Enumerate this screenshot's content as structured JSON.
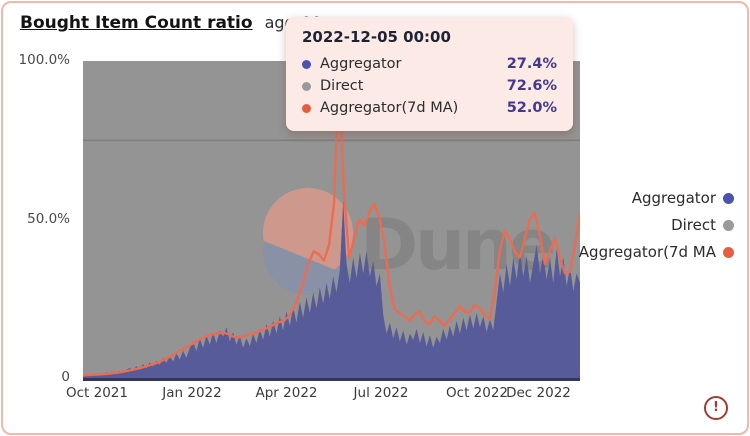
{
  "card": {
    "title": "Bought Item Count ratio",
    "subtitle": "aggr00"
  },
  "tooltip": {
    "date": "2022-12-05 00:00",
    "rows": [
      {
        "label": "Aggregator",
        "value": "27.4%",
        "color": "#4c52b0"
      },
      {
        "label": "Direct",
        "value": "72.6%",
        "color": "#9a9a9a"
      },
      {
        "label": "Aggregator(7d MA)",
        "value": "52.0%",
        "color": "#e95c3f"
      }
    ]
  },
  "legend": [
    {
      "label": "Aggregator",
      "color": "#4c52b0"
    },
    {
      "label": "Direct",
      "color": "#9a9a9a"
    },
    {
      "label": "Aggregator(7d MA",
      "color": "#e95c3f"
    }
  ],
  "watermark": {
    "text": "Dune",
    "circle_top_color": "#cf988c",
    "circle_bottom_color": "#8891a6",
    "text_color": "#858585"
  },
  "warning": {
    "glyph": "!"
  },
  "chart_data": {
    "type": "area",
    "title": "Bought Item Count ratio",
    "stacked_to": 100,
    "ylim": [
      0,
      100
    ],
    "grid_line_percent": 75,
    "plot_bg_color": "#949494",
    "y_ticks": [
      {
        "label": "100.0%",
        "v": 100
      },
      {
        "label": "50.0%",
        "v": 50
      },
      {
        "label": "0",
        "v": 0
      }
    ],
    "x_ticks": [
      {
        "label": "Oct 2021",
        "t": 2.82
      },
      {
        "label": "Jan 2022",
        "t": 21.93
      },
      {
        "label": "Apr 2022",
        "t": 40.95
      },
      {
        "label": "Jul 2022",
        "t": 59.96
      },
      {
        "label": "Oct 2022",
        "t": 79.28
      },
      {
        "label": "Dec 2022",
        "t": 91.65
      }
    ],
    "series": [
      {
        "name": "Aggregator",
        "type": "area",
        "color": "#585b99",
        "values": [
          0.8,
          1.2,
          0.7,
          1.3,
          0.9,
          1.5,
          0.9,
          1.8,
          1.1,
          2.0,
          1.4,
          2.3,
          1.6,
          2.6,
          3.2,
          2.1,
          3.8,
          2.6,
          4.4,
          3.0,
          5.0,
          3.6,
          5.4,
          4.2,
          6.3,
          4.8,
          7.0,
          5.2,
          7.8,
          5.8,
          8.6,
          6.4,
          9.4,
          11.5,
          8.5,
          12.5,
          9.5,
          13.5,
          10.5,
          14.5,
          11.0,
          15.0,
          13.0,
          16.0,
          11.5,
          14.5,
          10.5,
          13.5,
          9.5,
          12.5,
          10.0,
          14.0,
          11.0,
          15.5,
          12.0,
          17.0,
          13.0,
          18.0,
          14.0,
          19.5,
          15.0,
          21.0,
          16.5,
          22.5,
          17.5,
          24.0,
          19.0,
          25.5,
          20.5,
          27.0,
          22.0,
          28.5,
          23.5,
          30.0,
          25.0,
          32.0,
          27.0,
          34.0,
          56.0,
          36.0,
          30.0,
          38.0,
          31.5,
          39.5,
          33.0,
          40.0,
          32.0,
          37.0,
          29.0,
          33.0,
          20.0,
          14.0,
          17.5,
          12.5,
          16.0,
          11.5,
          15.0,
          10.5,
          14.0,
          12.0,
          15.5,
          11.0,
          14.5,
          10.0,
          13.5,
          9.5,
          13.0,
          11.0,
          15.5,
          12.0,
          16.5,
          13.0,
          18.0,
          14.0,
          19.0,
          15.0,
          20.0,
          15.5,
          20.5,
          16.0,
          19.5,
          14.5,
          18.5,
          15.0,
          24.0,
          33.0,
          27.0,
          36.0,
          29.0,
          38.0,
          31.0,
          40.0,
          32.0,
          38.5,
          30.0,
          36.0,
          42.0,
          33.0,
          39.0,
          31.0,
          37.5,
          30.0,
          41.0,
          32.0,
          38.0,
          29.0,
          35.0,
          27.4,
          33.0,
          30.0
        ]
      },
      {
        "name": "Direct",
        "type": "area",
        "color": "#949494",
        "note": "stacked remainder up to 100%"
      },
      {
        "name": "Aggregator(7d MA)",
        "type": "line",
        "color": "#ee6a50",
        "values": [
          0.8,
          0.9,
          1.0,
          1.1,
          1.2,
          1.3,
          1.5,
          1.7,
          2.0,
          2.3,
          2.6,
          3.0,
          3.4,
          3.9,
          4.4,
          4.9,
          5.6,
          6.4,
          7.3,
          8.3,
          9.3,
          10.0,
          11.0,
          12.0,
          12.8,
          13.4,
          13.8,
          14.1,
          14.3,
          13.8,
          13.0,
          12.8,
          13.2,
          13.6,
          14.0,
          14.6,
          15.3,
          16.0,
          16.8,
          17.6,
          18.0,
          19.5,
          22.0,
          26.0,
          31.0,
          36.5,
          40.0,
          39.0,
          37.0,
          42.0,
          55.0,
          97.0,
          58.0,
          38.0,
          44.0,
          50.0,
          48.0,
          52.0,
          55.0,
          51.0,
          43.0,
          30.0,
          22.0,
          20.5,
          19.5,
          18.0,
          20.0,
          21.0,
          18.0,
          17.0,
          19.5,
          18.0,
          16.5,
          18.5,
          20.5,
          22.5,
          21.0,
          20.5,
          23.0,
          22.0,
          20.0,
          18.5,
          27.0,
          40.0,
          46.5,
          44.0,
          40.0,
          38.0,
          44.0,
          50.0,
          52.0,
          45.0,
          36.0,
          40.0,
          44.0,
          38.0,
          33.0,
          33.5,
          42.0,
          52.0
        ]
      }
    ]
  }
}
